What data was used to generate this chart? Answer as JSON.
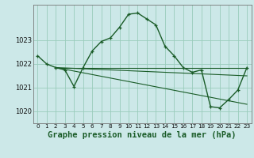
{
  "background_color": "#cce8e8",
  "grid_color": "#99ccbb",
  "line_color": "#1a5c28",
  "marker": "+",
  "title": "Graphe pression niveau de la mer (hPa)",
  "title_fontsize": 7.5,
  "xlim": [
    -0.5,
    23.5
  ],
  "ylim": [
    1019.5,
    1024.5
  ],
  "yticks": [
    1020,
    1021,
    1022,
    1023
  ],
  "xticks": [
    0,
    1,
    2,
    3,
    4,
    5,
    6,
    7,
    8,
    9,
    10,
    11,
    12,
    13,
    14,
    15,
    16,
    17,
    18,
    19,
    20,
    21,
    22,
    23
  ],
  "series_main": {
    "x": [
      0,
      1,
      2,
      3,
      4,
      5,
      6,
      7,
      8,
      9,
      10,
      11,
      12,
      13,
      14,
      15,
      16,
      17,
      18,
      19,
      20,
      21,
      22,
      23
    ],
    "y": [
      1022.35,
      1022.0,
      1021.85,
      1021.75,
      1021.05,
      1021.85,
      1022.55,
      1022.95,
      1023.1,
      1023.55,
      1024.1,
      1024.15,
      1023.9,
      1023.65,
      1022.75,
      1022.35,
      1021.85,
      1021.65,
      1021.75,
      1020.2,
      1020.15,
      1020.5,
      1020.9,
      1021.85
    ]
  },
  "trend_lines": [
    {
      "x": [
        2,
        23
      ],
      "y": [
        1021.85,
        1021.85
      ]
    },
    {
      "x": [
        2,
        23
      ],
      "y": [
        1021.85,
        1021.5
      ]
    },
    {
      "x": [
        2,
        23
      ],
      "y": [
        1021.85,
        1020.3
      ]
    }
  ]
}
